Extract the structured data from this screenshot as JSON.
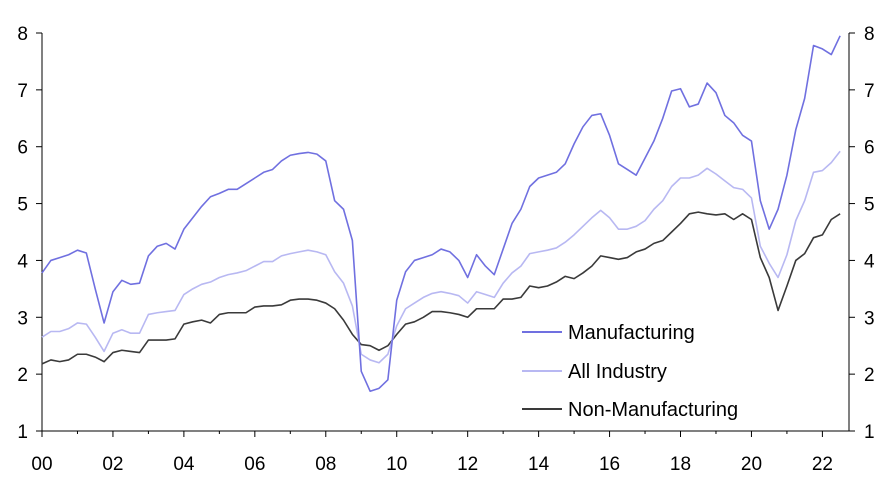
{
  "chart_data": {
    "type": "line",
    "title": "",
    "xlabel": "",
    "ylabel": "",
    "ylim": [
      1,
      8
    ],
    "y_ticks": [
      "1",
      "2",
      "3",
      "4",
      "5",
      "6",
      "7",
      "8"
    ],
    "y2_ticks": [
      "1",
      "2",
      "3",
      "4",
      "5",
      "6",
      "7",
      "8"
    ],
    "x_range": [
      2000,
      2022.75
    ],
    "x_ticks": [
      {
        "label": "00",
        "value": 2000
      },
      {
        "label": "02",
        "value": 2002
      },
      {
        "label": "04",
        "value": 2004
      },
      {
        "label": "06",
        "value": 2006
      },
      {
        "label": "08",
        "value": 2008
      },
      {
        "label": "10",
        "value": 2010
      },
      {
        "label": "12",
        "value": 2012
      },
      {
        "label": "14",
        "value": 2014
      },
      {
        "label": "16",
        "value": 2016
      },
      {
        "label": "18",
        "value": 2018
      },
      {
        "label": "20",
        "value": 2020
      },
      {
        "label": "22",
        "value": 2022
      }
    ],
    "legend_position": "bottom-right",
    "x": [
      2000.0,
      2000.25,
      2000.5,
      2000.75,
      2001.0,
      2001.25,
      2001.5,
      2001.75,
      2002.0,
      2002.25,
      2002.5,
      2002.75,
      2003.0,
      2003.25,
      2003.5,
      2003.75,
      2004.0,
      2004.25,
      2004.5,
      2004.75,
      2005.0,
      2005.25,
      2005.5,
      2005.75,
      2006.0,
      2006.25,
      2006.5,
      2006.75,
      2007.0,
      2007.25,
      2007.5,
      2007.75,
      2008.0,
      2008.25,
      2008.5,
      2008.75,
      2009.0,
      2009.25,
      2009.5,
      2009.75,
      2010.0,
      2010.25,
      2010.5,
      2010.75,
      2011.0,
      2011.25,
      2011.5,
      2011.75,
      2012.0,
      2012.25,
      2012.5,
      2012.75,
      2013.0,
      2013.25,
      2013.5,
      2013.75,
      2014.0,
      2014.25,
      2014.5,
      2014.75,
      2015.0,
      2015.25,
      2015.5,
      2015.75,
      2016.0,
      2016.25,
      2016.5,
      2016.75,
      2017.0,
      2017.25,
      2017.5,
      2017.75,
      2018.0,
      2018.25,
      2018.5,
      2018.75,
      2019.0,
      2019.25,
      2019.5,
      2019.75,
      2020.0,
      2020.25,
      2020.5,
      2020.75,
      2021.0,
      2021.25,
      2021.5,
      2021.75,
      2022.0,
      2022.25,
      2022.5
    ],
    "series": [
      {
        "name": "Manufacturing",
        "color": "#7070e0",
        "values": [
          3.78,
          4.0,
          4.05,
          4.1,
          4.18,
          4.13,
          3.5,
          2.9,
          3.45,
          3.65,
          3.58,
          3.6,
          4.08,
          4.25,
          4.3,
          4.2,
          4.55,
          4.75,
          4.95,
          5.12,
          5.18,
          5.25,
          5.25,
          5.35,
          5.45,
          5.55,
          5.6,
          5.75,
          5.85,
          5.88,
          5.9,
          5.87,
          5.75,
          5.05,
          4.9,
          4.35,
          2.05,
          1.7,
          1.75,
          1.9,
          3.3,
          3.8,
          4.0,
          4.05,
          4.1,
          4.2,
          4.15,
          4.0,
          3.7,
          4.1,
          3.9,
          3.75,
          4.2,
          4.65,
          4.9,
          5.3,
          5.45,
          5.5,
          5.55,
          5.7,
          6.05,
          6.35,
          6.55,
          6.58,
          6.2,
          5.7,
          5.6,
          5.5,
          5.8,
          6.1,
          6.5,
          6.98,
          7.02,
          6.7,
          6.75,
          7.12,
          6.95,
          6.55,
          6.42,
          6.2,
          6.1,
          5.05,
          4.55,
          4.9,
          5.5,
          6.3,
          6.85,
          7.78,
          7.72,
          7.62,
          7.95
        ]
      },
      {
        "name": "All Industry",
        "color": "#b8b8f2",
        "values": [
          2.65,
          2.75,
          2.75,
          2.8,
          2.9,
          2.88,
          2.65,
          2.4,
          2.72,
          2.78,
          2.72,
          2.72,
          3.05,
          3.08,
          3.1,
          3.12,
          3.4,
          3.5,
          3.58,
          3.62,
          3.7,
          3.75,
          3.78,
          3.82,
          3.9,
          3.98,
          3.98,
          4.08,
          4.12,
          4.15,
          4.18,
          4.15,
          4.1,
          3.8,
          3.6,
          3.2,
          2.35,
          2.25,
          2.2,
          2.35,
          2.85,
          3.15,
          3.25,
          3.35,
          3.42,
          3.45,
          3.42,
          3.38,
          3.25,
          3.45,
          3.4,
          3.35,
          3.6,
          3.78,
          3.9,
          4.12,
          4.15,
          4.18,
          4.22,
          4.32,
          4.45,
          4.6,
          4.75,
          4.88,
          4.75,
          4.55,
          4.55,
          4.6,
          4.7,
          4.9,
          5.05,
          5.3,
          5.45,
          5.45,
          5.5,
          5.62,
          5.52,
          5.4,
          5.28,
          5.25,
          5.1,
          4.25,
          3.95,
          3.7,
          4.1,
          4.7,
          5.05,
          5.55,
          5.58,
          5.72,
          5.92
        ]
      },
      {
        "name": "Non-Manufacturing",
        "color": "#3a3a3a",
        "values": [
          2.18,
          2.25,
          2.22,
          2.25,
          2.35,
          2.35,
          2.3,
          2.22,
          2.38,
          2.42,
          2.4,
          2.38,
          2.6,
          2.6,
          2.6,
          2.62,
          2.88,
          2.92,
          2.95,
          2.9,
          3.05,
          3.08,
          3.08,
          3.08,
          3.18,
          3.2,
          3.2,
          3.22,
          3.3,
          3.32,
          3.32,
          3.3,
          3.25,
          3.15,
          2.95,
          2.7,
          2.52,
          2.5,
          2.42,
          2.5,
          2.7,
          2.88,
          2.92,
          3.0,
          3.1,
          3.1,
          3.08,
          3.05,
          3.0,
          3.15,
          3.15,
          3.15,
          3.32,
          3.32,
          3.35,
          3.55,
          3.52,
          3.55,
          3.62,
          3.72,
          3.68,
          3.78,
          3.9,
          4.08,
          4.05,
          4.02,
          4.05,
          4.15,
          4.2,
          4.3,
          4.35,
          4.5,
          4.65,
          4.82,
          4.85,
          4.82,
          4.8,
          4.82,
          4.72,
          4.82,
          4.72,
          4.05,
          3.7,
          3.12,
          3.55,
          4.0,
          4.12,
          4.4,
          4.45,
          4.72,
          4.82
        ]
      }
    ]
  }
}
